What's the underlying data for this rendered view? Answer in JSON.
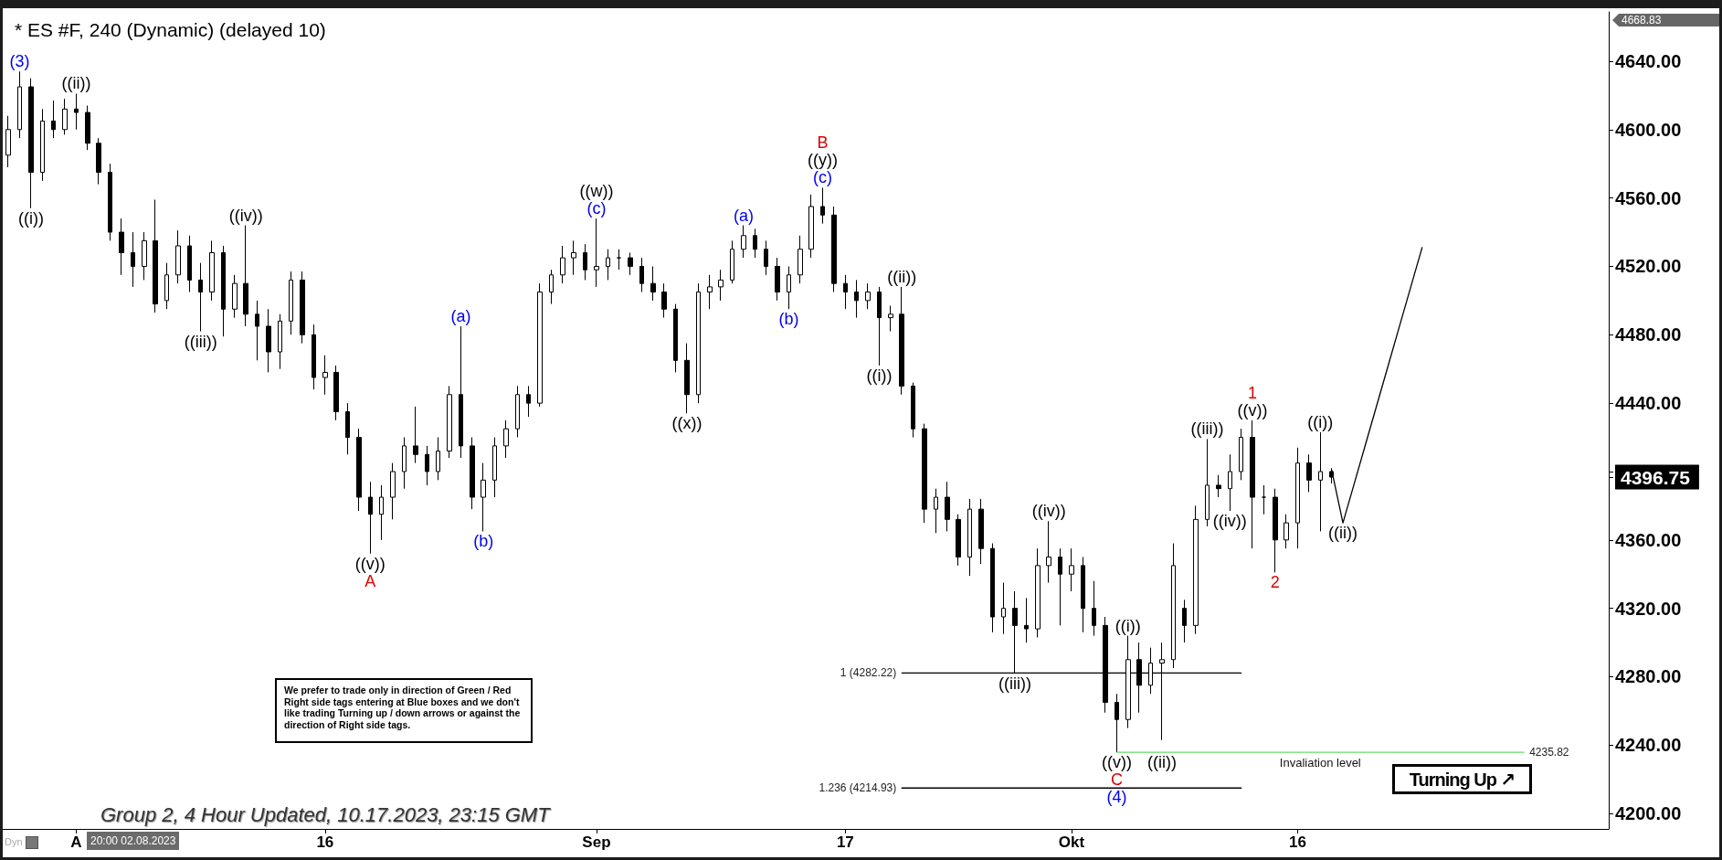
{
  "chart_data": {
    "type": "candlestick",
    "title": "* ES #F, 240 (Dynamic) (delayed 10)",
    "color": "#000000",
    "categories": [
      null,
      null,
      null,
      null,
      null,
      null,
      "A",
      null,
      null,
      null,
      null,
      null,
      null,
      null,
      null,
      null,
      null,
      null,
      null,
      null,
      null,
      null,
      null,
      null,
      null,
      null,
      null,
      null,
      "16",
      null,
      null,
      null,
      null,
      null,
      null,
      null,
      null,
      null,
      null,
      null,
      null,
      null,
      null,
      null,
      null,
      null,
      null,
      null,
      null,
      null,
      null,
      null,
      "Sep",
      null,
      null,
      null,
      null,
      null,
      null,
      null,
      null,
      null,
      null,
      null,
      null,
      null,
      null,
      null,
      null,
      null,
      null,
      null,
      null,
      null,
      "17",
      null,
      null,
      null,
      null,
      null,
      null,
      null,
      null,
      null,
      null,
      null,
      null,
      null,
      null,
      null,
      null,
      null,
      null,
      null,
      "Okt",
      null,
      null,
      null,
      null,
      null,
      null,
      null,
      null,
      null,
      null,
      null,
      null,
      null,
      null,
      null,
      null,
      null,
      null,
      null,
      "16",
      null,
      null,
      null,
      null,
      null,
      null,
      null,
      null,
      null,
      null,
      null,
      null,
      null,
      null,
      null,
      null,
      null,
      null,
      null,
      null,
      null,
      null,
      null,
      null,
      null,
      null,
      null
    ],
    "ohlc": [
      [
        4585,
        4608,
        4578,
        4600
      ],
      [
        4600,
        4634,
        4595,
        4625
      ],
      [
        4625,
        4630,
        4554,
        4575
      ],
      [
        4575,
        4612,
        4570,
        4605
      ],
      [
        4605,
        4617,
        4595,
        4600
      ],
      [
        4600,
        4618,
        4597,
        4612
      ],
      [
        4612,
        4621,
        4600,
        4610
      ],
      [
        4610,
        4614,
        4588,
        4592
      ],
      [
        4592,
        4595,
        4568,
        4575
      ],
      [
        4575,
        4580,
        4535,
        4540
      ],
      [
        4540,
        4548,
        4515,
        4528
      ],
      [
        4528,
        4540,
        4508,
        4520
      ],
      [
        4520,
        4540,
        4512,
        4535
      ],
      [
        4535,
        4559,
        4493,
        4498
      ],
      [
        4500,
        4522,
        4495,
        4515
      ],
      [
        4515,
        4541,
        4510,
        4532
      ],
      [
        4532,
        4538,
        4505,
        4512
      ],
      [
        4512,
        4522,
        4482,
        4505
      ],
      [
        4505,
        4535,
        4500,
        4528
      ],
      [
        4528,
        4532,
        4479,
        4495
      ],
      [
        4495,
        4515,
        4490,
        4510
      ],
      [
        4510,
        4544,
        4485,
        4492
      ],
      [
        4492,
        4500,
        4465,
        4485
      ],
      [
        4485,
        4495,
        4458,
        4470
      ],
      [
        4470,
        4492,
        4460,
        4488
      ],
      [
        4488,
        4517,
        4480,
        4512
      ],
      [
        4512,
        4517,
        4475,
        4480
      ],
      [
        4480,
        4486,
        4448,
        4455
      ],
      [
        4455,
        4468,
        4445,
        4458
      ],
      [
        4458,
        4462,
        4430,
        4435
      ],
      [
        4435,
        4440,
        4410,
        4420
      ],
      [
        4420,
        4425,
        4377,
        4385
      ],
      [
        4385,
        4394,
        4352,
        4375
      ],
      [
        4375,
        4392,
        4360,
        4385
      ],
      [
        4385,
        4405,
        4372,
        4400
      ],
      [
        4400,
        4420,
        4390,
        4415
      ],
      [
        4415,
        4438,
        4405,
        4410
      ],
      [
        4410,
        4415,
        4392,
        4400
      ],
      [
        4400,
        4420,
        4395,
        4412
      ],
      [
        4412,
        4450,
        4408,
        4445
      ],
      [
        4445,
        4485,
        4408,
        4415
      ],
      [
        4415,
        4420,
        4378,
        4385
      ],
      [
        4385,
        4405,
        4365,
        4395
      ],
      [
        4395,
        4420,
        4385,
        4415
      ],
      [
        4415,
        4430,
        4408,
        4425
      ],
      [
        4425,
        4450,
        4420,
        4445
      ],
      [
        4445,
        4450,
        4432,
        4440
      ],
      [
        4440,
        4510,
        4438,
        4505
      ],
      [
        4505,
        4518,
        4498,
        4515
      ],
      [
        4515,
        4532,
        4510,
        4525
      ],
      [
        4525,
        4535,
        4515,
        4528
      ],
      [
        4528,
        4533,
        4512,
        4518
      ],
      [
        4518,
        4548,
        4508,
        4520
      ],
      [
        4520,
        4530,
        4512,
        4525
      ],
      [
        4525,
        4530,
        4518,
        4525
      ],
      [
        4525,
        4528,
        4515,
        4520
      ],
      [
        4520,
        4525,
        4505,
        4510
      ],
      [
        4510,
        4520,
        4500,
        4505
      ],
      [
        4505,
        4510,
        4490,
        4495
      ],
      [
        4495,
        4498,
        4458,
        4465
      ],
      [
        4465,
        4475,
        4434,
        4445
      ],
      [
        4445,
        4510,
        4440,
        4505
      ],
      [
        4505,
        4515,
        4495,
        4508
      ],
      [
        4508,
        4518,
        4500,
        4512
      ],
      [
        4512,
        4535,
        4510,
        4530
      ],
      [
        4530,
        4544,
        4525,
        4538
      ],
      [
        4538,
        4542,
        4525,
        4530
      ],
      [
        4530,
        4535,
        4515,
        4520
      ],
      [
        4520,
        4525,
        4500,
        4505
      ],
      [
        4505,
        4520,
        4495,
        4515
      ],
      [
        4515,
        4538,
        4510,
        4530
      ],
      [
        4530,
        4562,
        4525,
        4555
      ],
      [
        4555,
        4566,
        4545,
        4550
      ],
      [
        4550,
        4555,
        4505,
        4510
      ],
      [
        4510,
        4515,
        4495,
        4505
      ],
      [
        4505,
        4512,
        4490,
        4500
      ],
      [
        4500,
        4510,
        4495,
        4505
      ],
      [
        4505,
        4508,
        4462,
        4490
      ],
      [
        4490,
        4497,
        4482,
        4492
      ],
      [
        4492,
        4508,
        4445,
        4450
      ],
      [
        4450,
        4452,
        4420,
        4425
      ],
      [
        4425,
        4428,
        4370,
        4378
      ],
      [
        4378,
        4390,
        4364,
        4385
      ],
      [
        4385,
        4394,
        4365,
        4372
      ],
      [
        4372,
        4375,
        4345,
        4350
      ],
      [
        4350,
        4384,
        4339,
        4378
      ],
      [
        4378,
        4384,
        4346,
        4355
      ],
      [
        4355,
        4358,
        4306,
        4315
      ],
      [
        4315,
        4335,
        4305,
        4320
      ],
      [
        4320,
        4330,
        4282,
        4310
      ],
      [
        4310,
        4326,
        4300,
        4308
      ],
      [
        4308,
        4355,
        4303,
        4345
      ],
      [
        4345,
        4371,
        4335,
        4350
      ],
      [
        4350,
        4355,
        4310,
        4340
      ],
      [
        4340,
        4355,
        4330,
        4345
      ],
      [
        4345,
        4350,
        4306,
        4320
      ],
      [
        4320,
        4336,
        4304,
        4310
      ],
      [
        4310,
        4315,
        4259,
        4265
      ],
      [
        4265,
        4270,
        4236,
        4255
      ],
      [
        4255,
        4304,
        4250,
        4290
      ],
      [
        4290,
        4300,
        4259,
        4275
      ],
      [
        4275,
        4297,
        4270,
        4288
      ],
      [
        4288,
        4300,
        4243,
        4290
      ],
      [
        4290,
        4358,
        4285,
        4345
      ],
      [
        4320,
        4325,
        4300,
        4310
      ],
      [
        4310,
        4380,
        4305,
        4372
      ],
      [
        4372,
        4419,
        4368,
        4392
      ],
      [
        4392,
        4398,
        4385,
        4390
      ],
      [
        4390,
        4410,
        4377,
        4400
      ],
      [
        4400,
        4425,
        4395,
        4420
      ],
      [
        4420,
        4430,
        4355,
        4385
      ],
      [
        4385,
        4392,
        4375,
        4385
      ],
      [
        4385,
        4390,
        4341,
        4360
      ],
      [
        4360,
        4375,
        4355,
        4370
      ],
      [
        4370,
        4414,
        4355,
        4405
      ],
      [
        4405,
        4410,
        4388,
        4395
      ],
      [
        4395,
        4423,
        4365,
        4400
      ],
      [
        4400,
        4402,
        4393,
        4396.75
      ],
      null,
      null,
      null,
      null,
      null,
      null,
      null,
      null,
      null,
      null,
      null,
      null,
      null,
      null,
      null,
      null,
      null,
      null,
      null,
      null,
      null,
      null,
      null,
      null
    ],
    "series": [
      {
        "type": "line",
        "color": "#000000",
        "values": [
          null,
          null,
          null,
          null,
          null,
          null,
          null,
          null,
          null,
          null,
          null,
          null,
          null,
          null,
          null,
          null,
          null,
          null,
          null,
          null,
          null,
          null,
          null,
          null,
          null,
          null,
          null,
          null,
          null,
          null,
          null,
          null,
          null,
          null,
          null,
          null,
          null,
          null,
          null,
          null,
          null,
          null,
          null,
          null,
          null,
          null,
          null,
          null,
          null,
          null,
          null,
          null,
          null,
          null,
          null,
          null,
          null,
          null,
          null,
          null,
          null,
          null,
          null,
          null,
          null,
          null,
          null,
          null,
          null,
          null,
          null,
          null,
          null,
          null,
          null,
          null,
          null,
          null,
          null,
          null,
          null,
          null,
          null,
          null,
          null,
          null,
          null,
          null,
          null,
          null,
          null,
          null,
          null,
          null,
          null,
          null,
          null,
          null,
          null,
          null,
          null,
          null,
          null,
          null,
          null,
          null,
          null,
          null,
          null,
          null,
          null,
          null,
          null,
          null,
          null,
          null,
          null,
          4401,
          4370,
          4393,
          4416,
          4439,
          4462,
          4485,
          4508,
          4531,
          null,
          null,
          null,
          null,
          null,
          null,
          null,
          null,
          null,
          null,
          null,
          null,
          null,
          null,
          null,
          null
        ]
      },
      {
        "type": "line",
        "color": "#000000",
        "values": [
          null,
          null,
          null,
          null,
          null,
          null,
          null,
          null,
          null,
          null,
          null,
          null,
          null,
          null,
          null,
          null,
          null,
          null,
          null,
          null,
          null,
          null,
          null,
          null,
          null,
          null,
          null,
          null,
          null,
          null,
          null,
          null,
          null,
          null,
          null,
          null,
          null,
          null,
          null,
          null,
          null,
          null,
          null,
          null,
          null,
          null,
          null,
          null,
          null,
          null,
          null,
          null,
          null,
          null,
          null,
          null,
          null,
          null,
          null,
          null,
          null,
          null,
          null,
          null,
          null,
          null,
          null,
          null,
          null,
          null,
          null,
          null,
          null,
          null,
          null,
          null,
          null,
          null,
          null,
          4282.22,
          4282.22,
          4282.22,
          4282.22,
          4282.22,
          4282.22,
          4282.22,
          4282.22,
          4282.22,
          4282.22,
          4282.22,
          4282.22,
          4282.22,
          4282.22,
          4282.22,
          4282.22,
          4282.22,
          4282.22,
          4282.22,
          4282.22,
          4282.22,
          4282.22,
          4282.22,
          4282.22,
          4282.22,
          4282.22,
          4282.22,
          4282.22,
          4282.22,
          4282.22,
          4282.22,
          null,
          null,
          null,
          null,
          null,
          null,
          null,
          null,
          null,
          null,
          null,
          null,
          null,
          null,
          null,
          null,
          null,
          null,
          null,
          null,
          null,
          null,
          null,
          null,
          null,
          null,
          null,
          null,
          null,
          null,
          null,
          null
        ],
        "value_labels": [
          null,
          null,
          null,
          null,
          null,
          null,
          null,
          null,
          null,
          null,
          null,
          null,
          null,
          null,
          null,
          null,
          null,
          null,
          null,
          null,
          null,
          null,
          null,
          null,
          null,
          null,
          null,
          null,
          null,
          null,
          null,
          null,
          null,
          null,
          null,
          null,
          null,
          null,
          null,
          null,
          null,
          null,
          null,
          null,
          null,
          null,
          null,
          null,
          null,
          null,
          null,
          null,
          null,
          null,
          null,
          null,
          null,
          null,
          null,
          null,
          null,
          null,
          null,
          null,
          null,
          null,
          null,
          null,
          null,
          null,
          null,
          null,
          null,
          null,
          null,
          null,
          null,
          null,
          null,
          "1 (4282.22)",
          null,
          null,
          null,
          null,
          null,
          null,
          null,
          null,
          null,
          null,
          null,
          null,
          null,
          null,
          null,
          null,
          null,
          null,
          null,
          null,
          null,
          null,
          null,
          null,
          null,
          null,
          null,
          null,
          null,
          null,
          null,
          null,
          null,
          null,
          null,
          null,
          null,
          null,
          null,
          null,
          null,
          null,
          null,
          null,
          null,
          null,
          null,
          null,
          null,
          null,
          null,
          null,
          null,
          null,
          null,
          null,
          null,
          null,
          null,
          null,
          null,
          null
        ]
      },
      {
        "type": "line",
        "color": "#000000",
        "values": [
          null,
          null,
          null,
          null,
          null,
          null,
          null,
          null,
          null,
          null,
          null,
          null,
          null,
          null,
          null,
          null,
          null,
          null,
          null,
          null,
          null,
          null,
          null,
          null,
          null,
          null,
          null,
          null,
          null,
          null,
          null,
          null,
          null,
          null,
          null,
          null,
          null,
          null,
          null,
          null,
          null,
          null,
          null,
          null,
          null,
          null,
          null,
          null,
          null,
          null,
          null,
          null,
          null,
          null,
          null,
          null,
          null,
          null,
          null,
          null,
          null,
          null,
          null,
          null,
          null,
          null,
          null,
          null,
          null,
          null,
          null,
          null,
          null,
          null,
          null,
          null,
          null,
          null,
          null,
          4214.93,
          4214.93,
          4214.93,
          4214.93,
          4214.93,
          4214.93,
          4214.93,
          4214.93,
          4214.93,
          4214.93,
          4214.93,
          4214.93,
          4214.93,
          4214.93,
          4214.93,
          4214.93,
          4214.93,
          4214.93,
          4214.93,
          4214.93,
          4214.93,
          4214.93,
          4214.93,
          4214.93,
          4214.93,
          4214.93,
          4214.93,
          4214.93,
          4214.93,
          4214.93,
          4214.93,
          null,
          null,
          null,
          null,
          null,
          null,
          null,
          null,
          null,
          null,
          null,
          null,
          null,
          null,
          null,
          null,
          null,
          null,
          null,
          null,
          null,
          null,
          null,
          null,
          null,
          null,
          null,
          null,
          null,
          null,
          null,
          null
        ],
        "value_labels": [
          null,
          null,
          null,
          null,
          null,
          null,
          null,
          null,
          null,
          null,
          null,
          null,
          null,
          null,
          null,
          null,
          null,
          null,
          null,
          null,
          null,
          null,
          null,
          null,
          null,
          null,
          null,
          null,
          null,
          null,
          null,
          null,
          null,
          null,
          null,
          null,
          null,
          null,
          null,
          null,
          null,
          null,
          null,
          null,
          null,
          null,
          null,
          null,
          null,
          null,
          null,
          null,
          null,
          null,
          null,
          null,
          null,
          null,
          null,
          null,
          null,
          null,
          null,
          null,
          null,
          null,
          null,
          null,
          null,
          null,
          null,
          null,
          null,
          null,
          null,
          null,
          null,
          null,
          null,
          "1.236 (4214.93)",
          null,
          null,
          null,
          null,
          null,
          null,
          null,
          null,
          null,
          null,
          null,
          null,
          null,
          null,
          null,
          null,
          null,
          null,
          null,
          null,
          null,
          null,
          null,
          null,
          null,
          null,
          null,
          null,
          null,
          null,
          null,
          null,
          null,
          null,
          null,
          null,
          null,
          null,
          null,
          null,
          null,
          null,
          null,
          null,
          null,
          null,
          null,
          null,
          null,
          null,
          null,
          null,
          null,
          null,
          null,
          null,
          null,
          null,
          null,
          null,
          null,
          null
        ]
      },
      {
        "type": "line",
        "name": "Invaliation level",
        "color": "#66dd66",
        "values": [
          null,
          null,
          null,
          null,
          null,
          null,
          null,
          null,
          null,
          null,
          null,
          null,
          null,
          null,
          null,
          null,
          null,
          null,
          null,
          null,
          null,
          null,
          null,
          null,
          null,
          null,
          null,
          null,
          null,
          null,
          null,
          null,
          null,
          null,
          null,
          null,
          null,
          null,
          null,
          null,
          null,
          null,
          null,
          null,
          null,
          null,
          null,
          null,
          null,
          null,
          null,
          null,
          null,
          null,
          null,
          null,
          null,
          null,
          null,
          null,
          null,
          null,
          null,
          null,
          null,
          null,
          null,
          null,
          null,
          null,
          null,
          null,
          null,
          null,
          null,
          null,
          null,
          null,
          null,
          null,
          null,
          null,
          null,
          null,
          null,
          null,
          null,
          null,
          null,
          null,
          null,
          null,
          null,
          null,
          null,
          null,
          null,
          null,
          4235.82,
          4235.82,
          4235.82,
          4235.82,
          4235.82,
          4235.82,
          4235.82,
          4235.82,
          4235.82,
          4235.82,
          4235.82,
          4235.82,
          4235.82,
          4235.82,
          4235.82,
          4235.82,
          4235.82,
          4235.82,
          4235.82,
          4235.82,
          4235.82,
          4235.82,
          4235.82,
          4235.82,
          4235.82,
          4235.82,
          4235.82,
          4235.82,
          4235.82,
          4235.82,
          4235.82,
          4235.82,
          4235.82,
          4235.82,
          4235.82,
          4235.82,
          4235.82,
          null,
          null,
          null,
          null,
          null,
          null,
          null
        ],
        "value_labels": [
          null,
          null,
          null,
          null,
          null,
          null,
          null,
          null,
          null,
          null,
          null,
          null,
          null,
          null,
          null,
          null,
          null,
          null,
          null,
          null,
          null,
          null,
          null,
          null,
          null,
          null,
          null,
          null,
          null,
          null,
          null,
          null,
          null,
          null,
          null,
          null,
          null,
          null,
          null,
          null,
          null,
          null,
          null,
          null,
          null,
          null,
          null,
          null,
          null,
          null,
          null,
          null,
          null,
          null,
          null,
          null,
          null,
          null,
          null,
          null,
          null,
          null,
          null,
          null,
          null,
          null,
          null,
          null,
          null,
          null,
          null,
          null,
          null,
          null,
          null,
          null,
          null,
          null,
          null,
          null,
          null,
          null,
          null,
          null,
          null,
          null,
          null,
          null,
          null,
          null,
          null,
          null,
          null,
          null,
          null,
          null,
          null,
          null,
          null,
          null,
          null,
          null,
          null,
          null,
          null,
          null,
          null,
          null,
          null,
          null,
          null,
          null,
          null,
          null,
          null,
          null,
          null,
          null,
          null,
          null,
          null,
          null,
          null,
          null,
          null,
          null,
          null,
          null,
          null,
          null,
          null,
          null,
          null,
          null,
          "4235.82",
          null,
          null,
          null,
          null,
          null,
          null,
          null
        ]
      }
    ],
    "ylim": [
      4191,
      4668.83
    ],
    "yticks": [
      {
        "value": 4200,
        "label": "4200.00"
      },
      {
        "value": 4240,
        "label": "4240.00"
      },
      {
        "value": 4280,
        "label": "4280.00"
      },
      {
        "value": 4320,
        "label": "4320.00"
      },
      {
        "value": 4360,
        "label": "4360.00"
      },
      {
        "value": 4396.75,
        "label": "4396.75"
      },
      {
        "value": 4400,
        "label": null
      },
      {
        "value": 4440,
        "label": "4440.00"
      },
      {
        "value": 4480,
        "label": "4480.00"
      },
      {
        "value": 4520,
        "label": "4520.00"
      },
      {
        "value": 4560,
        "label": "4560.00"
      },
      {
        "value": 4600,
        "label": "4600.00"
      },
      {
        "value": 4640,
        "label": "4640.00"
      }
    ],
    "annotations": [
      "Group 2, 4 Hour Updated, 10.17.2023, 23:15 GMT",
      "We prefer to trade only in direction of Green / Red Right side tags entering at Blue boxes and we don't like trading Turning up / down arrows or against the direction of Right side tags.",
      "Turning Up ↗",
      "20:00 02.08.2023",
      "Dyn",
      {
        "text": "(3)",
        "y": 4634
      },
      {
        "text": "((i))",
        "y": 4554
      },
      {
        "text": "((ii))",
        "y": 4621
      },
      {
        "text": "((iii))",
        "y": 4482
      },
      {
        "text": "((iv))",
        "y": 4544
      },
      {
        "text": "((v))",
        "y": 4352
      },
      {
        "text": "A",
        "y": 4352
      },
      {
        "text": "(a)",
        "y": 4485
      },
      {
        "text": "(b)",
        "y": 4365
      },
      {
        "text": "((w))",
        "y": 4548
      },
      {
        "text": "(c)",
        "y": 4548
      },
      {
        "text": "((x))",
        "y": 4434
      },
      {
        "text": "(a)",
        "y": 4544
      },
      {
        "text": "(b)",
        "y": 4495
      },
      {
        "text": "B",
        "y": 4566
      },
      {
        "text": "((y))",
        "y": 4566
      },
      {
        "text": "(c)",
        "y": 4566
      },
      {
        "text": "((i))",
        "y": 4462
      },
      {
        "text": "((ii))",
        "y": 4508
      },
      {
        "text": "((iii))",
        "y": 4282
      },
      {
        "text": "((iv))",
        "y": 4371
      },
      {
        "text": "((v))",
        "y": 4236
      },
      {
        "text": "C",
        "y": 4236
      },
      {
        "text": "(4)",
        "y": 4236
      },
      {
        "text": "((i))",
        "y": 4304
      },
      {
        "text": "((ii))",
        "y": 4243
      },
      {
        "text": "((iii))",
        "y": 4419
      },
      {
        "text": "((iv))",
        "y": 4377
      },
      {
        "text": "1",
        "y": 4430
      },
      {
        "text": "((v))",
        "y": 4430
      },
      {
        "text": "2",
        "y": 4341
      },
      {
        "text": "((i))",
        "y": 4423
      },
      {
        "text": "((ii))",
        "y": 4370
      },
      "4668.83"
    ]
  }
}
